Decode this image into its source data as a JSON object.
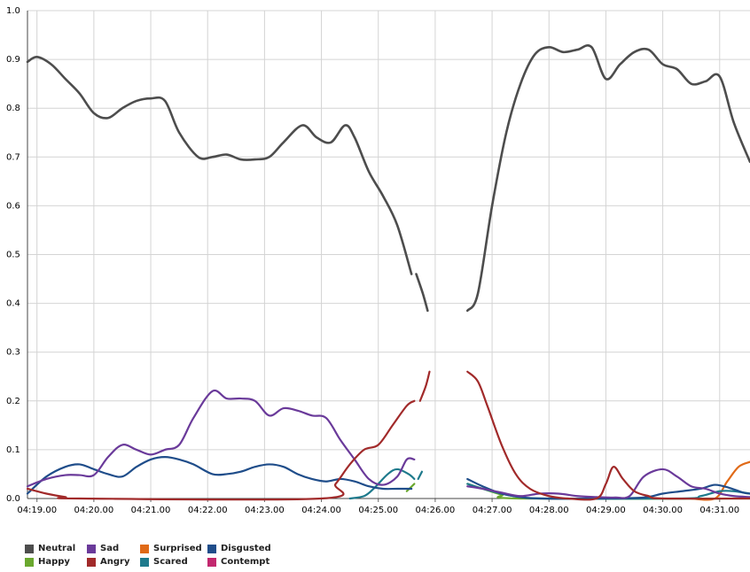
{
  "chart_data": {
    "type": "line",
    "title": "",
    "xlabel": "",
    "ylabel": "",
    "ylim": [
      0,
      1.0
    ],
    "y_ticks": [
      "0.0",
      "0.1",
      "0.2",
      "0.3",
      "0.4",
      "0.5",
      "0.6",
      "0.7",
      "0.8",
      "0.9",
      "1.0"
    ],
    "x_ticks": [
      "04:19.00",
      "04:20.00",
      "04:21.00",
      "04:22.00",
      "04:23.00",
      "04:24.00",
      "04:25.00",
      "04:26.00",
      "04:27.00",
      "04:28.00",
      "04:29.00",
      "04:30.00",
      "04:31.00"
    ],
    "xlim_seconds_after_04_19": [
      -10,
      752
    ],
    "grid": true,
    "legend_position": "bottom-left",
    "series": [
      {
        "name": "Neutral",
        "color": "#4d4d4d",
        "segments": [
          [
            [
              -10,
              0.895
            ],
            [
              0,
              0.905
            ],
            [
              15,
              0.89
            ],
            [
              30,
              0.86
            ],
            [
              45,
              0.83
            ],
            [
              60,
              0.79
            ],
            [
              75,
              0.78
            ],
            [
              90,
              0.8
            ],
            [
              105,
              0.815
            ],
            [
              120,
              0.82
            ],
            [
              135,
              0.815
            ],
            [
              150,
              0.75
            ],
            [
              170,
              0.7
            ],
            [
              185,
              0.7
            ],
            [
              200,
              0.705
            ],
            [
              215,
              0.695
            ],
            [
              230,
              0.695
            ],
            [
              245,
              0.7
            ],
            [
              260,
              0.73
            ],
            [
              280,
              0.765
            ],
            [
              295,
              0.74
            ],
            [
              310,
              0.73
            ],
            [
              325,
              0.765
            ],
            [
              335,
              0.74
            ],
            [
              350,
              0.67
            ],
            [
              365,
              0.62
            ],
            [
              380,
              0.56
            ],
            [
              395,
              0.46
            ]
          ],
          [
            [
              400,
              0.46
            ],
            [
              407,
              0.42
            ],
            [
              412,
              0.385
            ]
          ],
          [
            [
              454,
              0.385
            ],
            [
              465,
              0.42
            ],
            [
              480,
              0.6
            ],
            [
              495,
              0.75
            ],
            [
              510,
              0.85
            ],
            [
              525,
              0.91
            ],
            [
              540,
              0.925
            ],
            [
              555,
              0.915
            ],
            [
              570,
              0.92
            ],
            [
              585,
              0.925
            ],
            [
              600,
              0.86
            ],
            [
              615,
              0.89
            ],
            [
              630,
              0.915
            ],
            [
              645,
              0.92
            ],
            [
              660,
              0.89
            ],
            [
              675,
              0.88
            ],
            [
              690,
              0.85
            ],
            [
              705,
              0.855
            ],
            [
              720,
              0.865
            ],
            [
              735,
              0.77
            ],
            [
              752,
              0.69
            ]
          ]
        ]
      },
      {
        "name": "Sad",
        "color": "#6a3a9a",
        "segments": [
          [
            [
              -10,
              0.025
            ],
            [
              10,
              0.04
            ],
            [
              30,
              0.048
            ],
            [
              45,
              0.048
            ],
            [
              60,
              0.048
            ],
            [
              75,
              0.085
            ],
            [
              90,
              0.11
            ],
            [
              105,
              0.1
            ],
            [
              120,
              0.09
            ],
            [
              135,
              0.1
            ],
            [
              150,
              0.11
            ],
            [
              165,
              0.165
            ],
            [
              185,
              0.22
            ],
            [
              200,
              0.205
            ],
            [
              215,
              0.205
            ],
            [
              230,
              0.2
            ],
            [
              245,
              0.17
            ],
            [
              260,
              0.185
            ],
            [
              275,
              0.18
            ],
            [
              290,
              0.17
            ],
            [
              305,
              0.165
            ],
            [
              320,
              0.12
            ],
            [
              335,
              0.08
            ],
            [
              350,
              0.04
            ],
            [
              365,
              0.028
            ],
            [
              380,
              0.045
            ],
            [
              390,
              0.08
            ],
            [
              398,
              0.08
            ]
          ],
          [
            [
              454,
              0.025
            ],
            [
              470,
              0.02
            ],
            [
              490,
              0.012
            ],
            [
              510,
              0.005
            ],
            [
              530,
              0.01
            ],
            [
              550,
              0.01
            ],
            [
              570,
              0.005
            ],
            [
              590,
              0.003
            ],
            [
              610,
              0.002
            ],
            [
              625,
              0.005
            ],
            [
              640,
              0.045
            ],
            [
              660,
              0.06
            ],
            [
              675,
              0.045
            ],
            [
              690,
              0.025
            ],
            [
              705,
              0.02
            ],
            [
              720,
              0.01
            ],
            [
              735,
              0.005
            ],
            [
              752,
              0.003
            ]
          ]
        ]
      },
      {
        "name": "Surprised",
        "color": "#e06a18",
        "segments": [
          [
            [
              690,
              0.0
            ],
            [
              715,
              0.0
            ],
            [
              728,
              0.035
            ],
            [
              740,
              0.065
            ],
            [
              752,
              0.075
            ]
          ]
        ]
      },
      {
        "name": "Disgusted",
        "color": "#1f4d8a",
        "segments": [
          [
            [
              -10,
              0.01
            ],
            [
              10,
              0.045
            ],
            [
              30,
              0.065
            ],
            [
              45,
              0.07
            ],
            [
              60,
              0.06
            ],
            [
              75,
              0.05
            ],
            [
              90,
              0.045
            ],
            [
              105,
              0.065
            ],
            [
              120,
              0.08
            ],
            [
              135,
              0.085
            ],
            [
              150,
              0.08
            ],
            [
              165,
              0.07
            ],
            [
              185,
              0.05
            ],
            [
              200,
              0.05
            ],
            [
              215,
              0.055
            ],
            [
              230,
              0.065
            ],
            [
              245,
              0.07
            ],
            [
              260,
              0.065
            ],
            [
              275,
              0.05
            ],
            [
              290,
              0.04
            ],
            [
              305,
              0.035
            ],
            [
              320,
              0.04
            ],
            [
              335,
              0.035
            ],
            [
              350,
              0.025
            ],
            [
              365,
              0.02
            ],
            [
              380,
              0.02
            ],
            [
              395,
              0.02
            ]
          ],
          [
            [
              454,
              0.04
            ],
            [
              470,
              0.025
            ],
            [
              490,
              0.01
            ],
            [
              510,
              0.003
            ],
            [
              530,
              0.0
            ],
            [
              600,
              0.0
            ],
            [
              640,
              0.002
            ],
            [
              660,
              0.01
            ],
            [
              680,
              0.015
            ],
            [
              700,
              0.02
            ],
            [
              715,
              0.028
            ],
            [
              730,
              0.022
            ],
            [
              745,
              0.012
            ],
            [
              752,
              0.01
            ]
          ]
        ]
      },
      {
        "name": "Happy",
        "color": "#6aa82e",
        "segments": [
          [
            [
              390,
              0.015
            ],
            [
              398,
              0.03
            ]
          ],
          [
            [
              454,
              0.03
            ],
            [
              470,
              0.02
            ],
            [
              490,
              0.008
            ],
            [
              510,
              0.0
            ],
            [
              752,
              0.0
            ]
          ]
        ]
      },
      {
        "name": "Angry",
        "color": "#a12a2a",
        "segments": [
          [
            [
              -10,
              0.02
            ],
            [
              10,
              0.01
            ],
            [
              30,
              0.003
            ],
            [
              45,
              0.0
            ],
            [
              300,
              0.0
            ],
            [
              315,
              0.03
            ],
            [
              330,
              0.07
            ],
            [
              345,
              0.1
            ],
            [
              360,
              0.11
            ],
            [
              375,
              0.15
            ],
            [
              390,
              0.19
            ],
            [
              398,
              0.2
            ]
          ],
          [
            [
              404,
              0.2
            ],
            [
              410,
              0.23
            ],
            [
              414,
              0.26
            ]
          ],
          [
            [
              454,
              0.26
            ],
            [
              465,
              0.24
            ],
            [
              475,
              0.19
            ],
            [
              490,
              0.11
            ],
            [
              505,
              0.05
            ],
            [
              520,
              0.02
            ],
            [
              540,
              0.005
            ],
            [
              560,
              0.0
            ],
            [
              590,
              0.0
            ],
            [
              600,
              0.03
            ],
            [
              608,
              0.065
            ],
            [
              618,
              0.04
            ],
            [
              630,
              0.015
            ],
            [
              645,
              0.005
            ],
            [
              660,
              0.0
            ],
            [
              752,
              0.0
            ]
          ]
        ]
      },
      {
        "name": "Scared",
        "color": "#1e7a8c",
        "segments": [
          [
            [
              330,
              0.0
            ],
            [
              345,
              0.005
            ],
            [
              355,
              0.02
            ],
            [
              370,
              0.05
            ],
            [
              380,
              0.06
            ],
            [
              392,
              0.05
            ],
            [
              398,
              0.04
            ]
          ],
          [
            [
              402,
              0.04
            ],
            [
              406,
              0.055
            ]
          ],
          [
            [
              454,
              0.03
            ],
            [
              470,
              0.02
            ],
            [
              490,
              0.01
            ],
            [
              510,
              0.003
            ],
            [
              540,
              0.0
            ],
            [
              680,
              0.0
            ],
            [
              700,
              0.005
            ],
            [
              720,
              0.015
            ],
            [
              735,
              0.015
            ],
            [
              752,
              0.01
            ]
          ]
        ]
      },
      {
        "name": "Contempt",
        "color": "#c2286f",
        "segments": []
      }
    ]
  },
  "legend": {
    "items": [
      {
        "label": "Neutral",
        "color": "#4d4d4d"
      },
      {
        "label": "Happy",
        "color": "#6aa82e"
      },
      {
        "label": "Sad",
        "color": "#6a3a9a"
      },
      {
        "label": "Angry",
        "color": "#a12a2a"
      },
      {
        "label": "Surprised",
        "color": "#e06a18"
      },
      {
        "label": "Scared",
        "color": "#1e7a8c"
      },
      {
        "label": "Disgusted",
        "color": "#1f4d8a"
      },
      {
        "label": "Contempt",
        "color": "#c2286f"
      }
    ]
  }
}
